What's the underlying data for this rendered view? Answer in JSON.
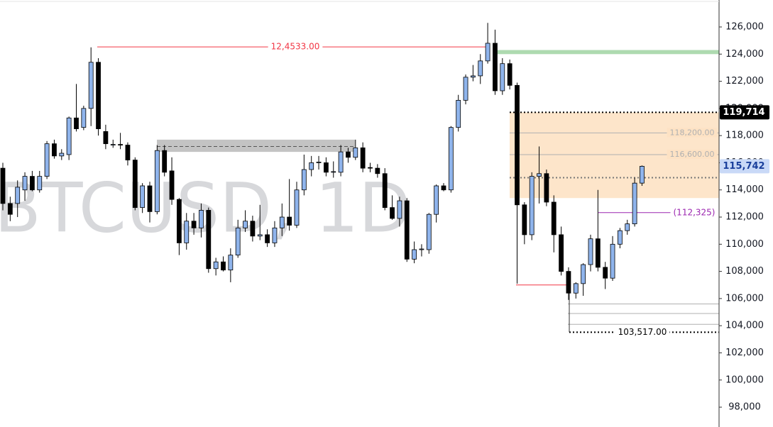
{
  "chart_data": {
    "type": "candlestick",
    "watermark": "BTCUSD, 1D",
    "up_color": "#8fb4ec",
    "down_color": "#000000",
    "ylim": [
      96540,
      127985
    ],
    "yticks": [
      {
        "value": 98000,
        "label": "98,000"
      },
      {
        "value": 100000,
        "label": "100,000"
      },
      {
        "value": 102000,
        "label": "102,000"
      },
      {
        "value": 104000,
        "label": "104,000"
      },
      {
        "value": 106000,
        "label": "106,000"
      },
      {
        "value": 108000,
        "label": "108,000"
      },
      {
        "value": 110000,
        "label": "110,000"
      },
      {
        "value": 112000,
        "label": "112,000"
      },
      {
        "value": 114000,
        "label": "114,000"
      },
      {
        "value": 116000,
        "label": "116,000"
      },
      {
        "value": 118000,
        "label": "118,000"
      },
      {
        "value": 120000,
        "label": "120,000"
      },
      {
        "value": 122000,
        "label": "122,000"
      },
      {
        "value": 124000,
        "label": "124,000"
      },
      {
        "value": 126000,
        "label": "126,000"
      }
    ],
    "open": [
      115600,
      113000,
      113000,
      114000,
      115000,
      114000,
      115000,
      117400,
      116500,
      116600,
      119300,
      118600,
      120000,
      123400,
      118300,
      117300,
      117350,
      117300,
      116200,
      112700,
      114300,
      112400,
      116900,
      115400,
      113300,
      110100,
      111700,
      111200,
      112500,
      108200,
      108700,
      108100,
      109200,
      111200,
      111700,
      110600,
      110700,
      110100,
      111200,
      112000,
      111400,
      114000,
      115500,
      116000,
      116000,
      115300,
      115300,
      116800,
      116400,
      117100,
      115650,
      115600,
      115200,
      112700,
      111900,
      113200,
      108900,
      109600,
      109600,
      112200,
      114300,
      114000,
      118600,
      120600,
      122300,
      122400,
      123500,
      124800,
      121300,
      123300,
      121700,
      112900,
      110700,
      115000,
      115200,
      113100,
      110700,
      108000,
      106400,
      107100,
      108500,
      110400,
      108300,
      107500,
      110000,
      111000,
      111500,
      114500
    ],
    "high": [
      116000,
      113500,
      114700,
      115300,
      115400,
      115400,
      117600,
      117700,
      117000,
      119400,
      121800,
      120200,
      124500,
      123700,
      118800,
      117700,
      118200,
      117500,
      116400,
      114500,
      114600,
      117300,
      117300,
      116400,
      113400,
      112300,
      112300,
      113000,
      112700,
      109000,
      109100,
      109700,
      111800,
      112500,
      112100,
      112900,
      111100,
      111700,
      113000,
      114800,
      114600,
      116600,
      116500,
      116500,
      116400,
      116100,
      117300,
      117100,
      117700,
      117500,
      116000,
      115900,
      115600,
      113600,
      113500,
      113400,
      110200,
      110000,
      112300,
      114400,
      114500,
      118700,
      121000,
      122500,
      123200,
      124000,
      126300,
      125800,
      123700,
      123600,
      121900,
      113100,
      115300,
      117200,
      115500,
      113600,
      111300,
      108300,
      107200,
      108600,
      110700,
      114000,
      108700,
      110600,
      111200,
      111800,
      114900,
      115800
    ],
    "low": [
      112500,
      111700,
      112000,
      113200,
      113900,
      113800,
      114800,
      116300,
      116200,
      116200,
      118300,
      118400,
      118700,
      118000,
      117000,
      117100,
      117000,
      115800,
      112500,
      112300,
      111600,
      112200,
      115000,
      112900,
      109200,
      109600,
      110700,
      110500,
      107900,
      107700,
      108000,
      107200,
      109000,
      110900,
      110200,
      110300,
      109800,
      109800,
      110600,
      111000,
      111200,
      113600,
      115000,
      115500,
      115000,
      114900,
      115000,
      116000,
      116200,
      115300,
      115300,
      114900,
      112500,
      111800,
      111300,
      108700,
      108600,
      109100,
      109300,
      111600,
      113900,
      113800,
      118300,
      120300,
      122000,
      121800,
      123300,
      121000,
      121000,
      121400,
      107100,
      110000,
      110300,
      113000,
      112800,
      109400,
      107700,
      105900,
      106000,
      106200,
      108000,
      108000,
      106700,
      107300,
      109700,
      110700,
      111300,
      114300
    ],
    "close": [
      113000,
      112200,
      114200,
      115000,
      114000,
      115000,
      117400,
      116500,
      116700,
      119300,
      118500,
      120000,
      123400,
      118500,
      117400,
      117350,
      117300,
      116200,
      112700,
      114300,
      112400,
      116900,
      115300,
      113300,
      110100,
      111700,
      111200,
      112500,
      108200,
      108700,
      108100,
      109200,
      111200,
      111700,
      110600,
      110700,
      110100,
      111200,
      112000,
      111400,
      114000,
      115500,
      116000,
      116050,
      115300,
      115350,
      116800,
      116400,
      117100,
      115600,
      115600,
      115200,
      112700,
      111900,
      113200,
      108900,
      109600,
      109650,
      112200,
      114300,
      114000,
      118600,
      120600,
      122300,
      122400,
      123500,
      124800,
      121300,
      123300,
      121700,
      112900,
      110700,
      115000,
      115200,
      113100,
      110700,
      108000,
      106400,
      107100,
      108500,
      110400,
      108300,
      107500,
      110000,
      111000,
      111500,
      114500,
      115742
    ],
    "zones": [
      {
        "from": 124000,
        "to": 124300,
        "color": "#a5d6a7"
      },
      {
        "from": 116800,
        "to": 117700,
        "color": "#bdbdbd"
      },
      {
        "from": 113400,
        "to": 119714,
        "color": "#fde2c4"
      }
    ],
    "levels": [
      {
        "value": 124533,
        "label": "12,4533.00",
        "color": "#f23645",
        "style": "solid"
      },
      {
        "value": 117200,
        "color": "#555555",
        "style": "dashed"
      },
      {
        "value": 119714,
        "color": "#000000",
        "style": "dotted"
      },
      {
        "value": 118200,
        "label": "118,200.00",
        "color": "#b0b0b0",
        "style": "solid"
      },
      {
        "value": 116600,
        "label": "116,600.00",
        "color": "#b0b0b0",
        "style": "solid"
      },
      {
        "value": 114900,
        "color": "#777777",
        "style": "dotted"
      },
      {
        "value": 112325,
        "label": "(112,325)",
        "color": "#9c27b0",
        "style": "solid"
      },
      {
        "value": 107000,
        "color": "#f23645",
        "style": "solid"
      },
      {
        "value": 105600,
        "color": "#b0b0b0",
        "style": "solid"
      },
      {
        "value": 104900,
        "color": "#b0b0b0",
        "style": "solid"
      },
      {
        "value": 104100,
        "color": "#b0b0b0",
        "style": "solid"
      },
      {
        "value": 103517,
        "label": "103,517.00",
        "color": "#000000",
        "style": "dotted"
      }
    ],
    "price_tags": [
      {
        "value": 119714,
        "label": "119,714",
        "color": "#000000",
        "text_color": "#ffffff"
      },
      {
        "value": 115742,
        "label": "115,742",
        "color": "#c9d9f7",
        "text_color": "#1a3f9c"
      }
    ]
  }
}
